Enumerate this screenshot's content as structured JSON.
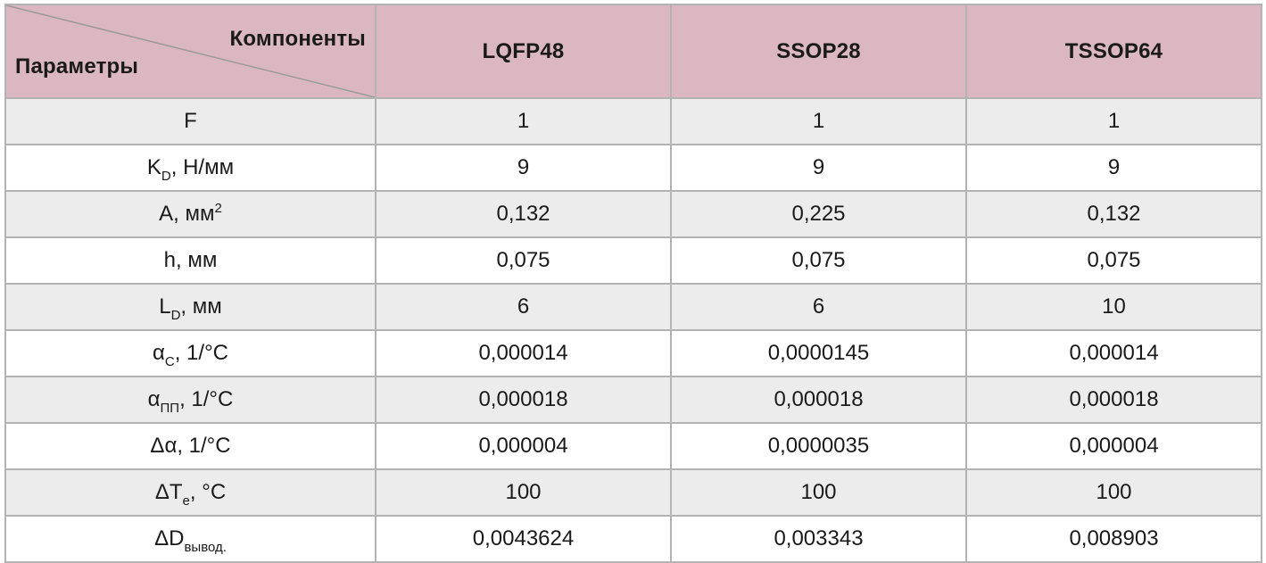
{
  "header": {
    "corner_top": "Компоненты",
    "corner_bottom": "Параметры",
    "columns": [
      "LQFP48",
      "SSOP28",
      "TSSOP64"
    ]
  },
  "rows": [
    {
      "param": "F",
      "sub": "",
      "sup": "",
      "suffix": "",
      "values": [
        "1",
        "1",
        "1"
      ]
    },
    {
      "param": "K",
      "sub": "D",
      "sup": "",
      "suffix": ", Н/мм",
      "values": [
        "9",
        "9",
        "9"
      ]
    },
    {
      "param": "A, мм",
      "sub": "",
      "sup": "2",
      "suffix": "",
      "values": [
        "0,132",
        "0,225",
        "0,132"
      ]
    },
    {
      "param": "h, мм",
      "sub": "",
      "sup": "",
      "suffix": "",
      "values": [
        "0,075",
        "0,075",
        "0,075"
      ]
    },
    {
      "param": "L",
      "sub": "D",
      "sup": "",
      "suffix": ", мм",
      "values": [
        "6",
        "6",
        "10"
      ]
    },
    {
      "param": "α",
      "sub": "C",
      "sup": "",
      "suffix": ", 1/°C",
      "values": [
        "0,000014",
        "0,0000145",
        "0,000014"
      ]
    },
    {
      "param": "α",
      "sub": "ПП",
      "sup": "",
      "suffix": ", 1/°C",
      "values": [
        "0,000018",
        "0,000018",
        "0,000018"
      ]
    },
    {
      "param": "Δα, 1/°C",
      "sub": "",
      "sup": "",
      "suffix": "",
      "values": [
        "0,000004",
        "0,0000035",
        "0,000004"
      ]
    },
    {
      "param": "ΔT",
      "sub": "e",
      "sup": "",
      "suffix": ", °C",
      "values": [
        "100",
        "100",
        "100"
      ]
    },
    {
      "param": "ΔD",
      "sub": "вывод.",
      "sup": "",
      "suffix": "",
      "values": [
        "0,0043624",
        "0,003343",
        "0,008903"
      ]
    }
  ],
  "colors": {
    "header_bg": "#dbb7c1",
    "row_odd_bg": "#ececec",
    "row_even_bg": "#ffffff",
    "border": "#b3b3b3"
  }
}
